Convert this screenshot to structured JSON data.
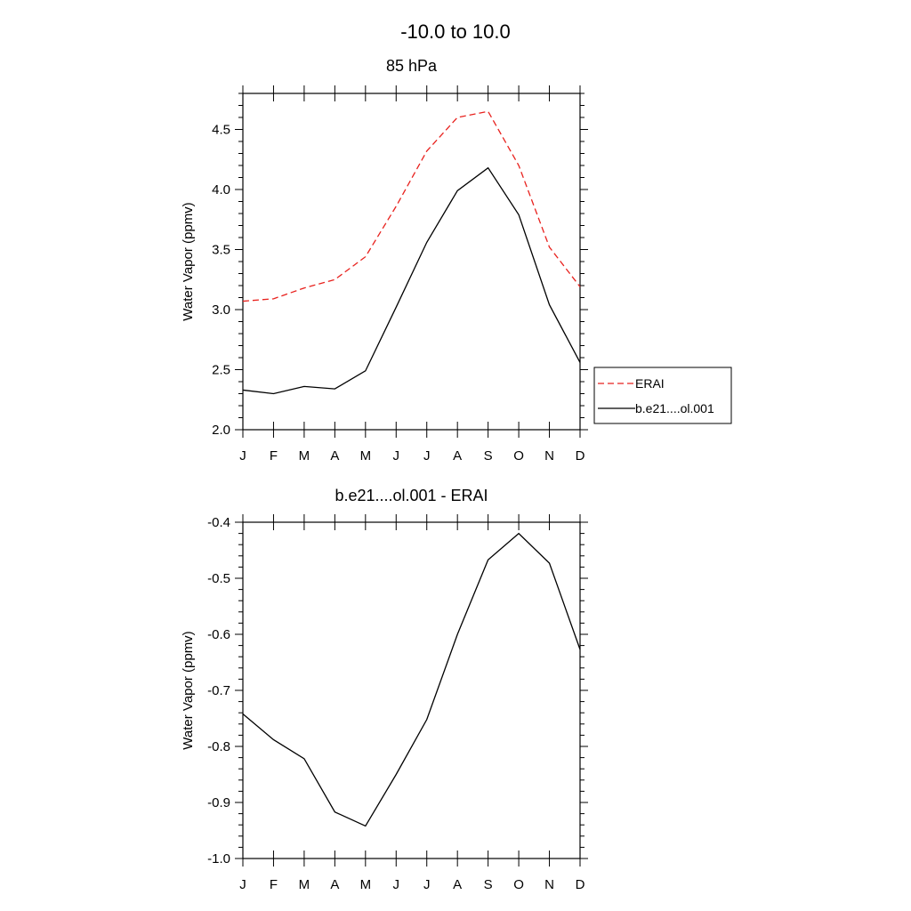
{
  "figure": {
    "title": "-10.0 to  10.0"
  },
  "chart_data": [
    {
      "type": "line",
      "title": "85 hPa",
      "xlabel": "",
      "ylabel": "Water Vapor (ppmv)",
      "categories": [
        "J",
        "F",
        "M",
        "A",
        "M",
        "J",
        "J",
        "A",
        "S",
        "O",
        "N",
        "D"
      ],
      "ylim": [
        2.0,
        4.8
      ],
      "yticks": [
        "2.0",
        "2.5",
        "3.0",
        "3.5",
        "4.0",
        "4.5"
      ],
      "grid": false,
      "legend_position": "right",
      "series": [
        {
          "name": "ERAI",
          "color": "#e8211d",
          "dash": "dashed",
          "values": [
            3.07,
            3.09,
            3.18,
            3.25,
            3.44,
            3.86,
            4.32,
            4.6,
            4.65,
            4.2,
            3.52,
            3.19
          ]
        },
        {
          "name": "b.e21....ol.001",
          "color": "#000000",
          "dash": "solid",
          "values": [
            2.33,
            2.3,
            2.36,
            2.34,
            2.49,
            3.02,
            3.56,
            3.99,
            4.18,
            3.79,
            3.04,
            2.56
          ]
        }
      ]
    },
    {
      "type": "line",
      "title": "b.e21....ol.001 - ERAI",
      "xlabel": "",
      "ylabel": "Water Vapor (ppmv)",
      "categories": [
        "J",
        "F",
        "M",
        "A",
        "M",
        "J",
        "J",
        "A",
        "S",
        "O",
        "N",
        "D"
      ],
      "ylim": [
        -1.0,
        -0.4
      ],
      "yticks": [
        "-1.0",
        "-0.9",
        "-0.8",
        "-0.7",
        "-0.6",
        "-0.5",
        "-0.4"
      ],
      "grid": false,
      "series": [
        {
          "color": "#000000",
          "dash": "solid",
          "values": [
            -0.742,
            -0.788,
            -0.822,
            -0.917,
            -0.942,
            -0.85,
            -0.752,
            -0.6,
            -0.467,
            -0.42,
            -0.473,
            -0.627
          ]
        }
      ]
    }
  ]
}
